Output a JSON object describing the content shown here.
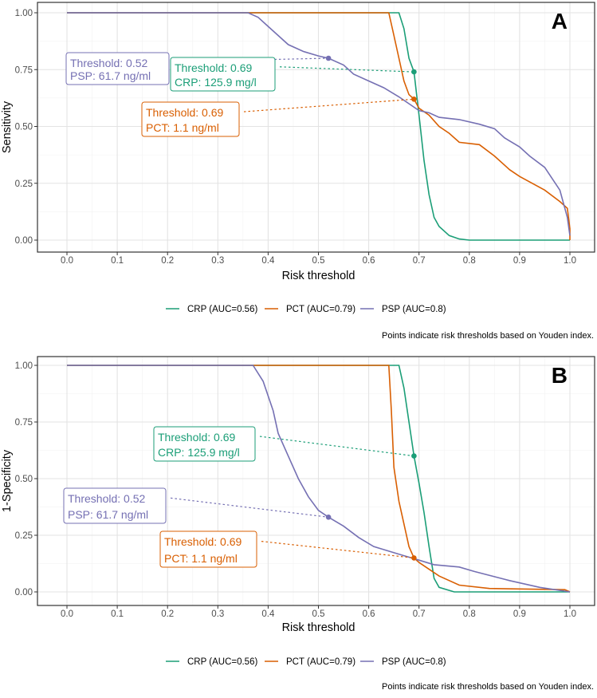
{
  "colors": {
    "CRP": "#1B9E77",
    "PCT": "#D95F02",
    "PSP": "#7570B3"
  },
  "chart_data": [
    {
      "type": "line",
      "panel": "A",
      "xlabel": "Risk threshold",
      "ylabel": "Sensitivity",
      "xlim": [
        0,
        1
      ],
      "ylim": [
        0,
        1
      ],
      "xticks": [
        "0.0",
        "0.1",
        "0.2",
        "0.3",
        "0.4",
        "0.5",
        "0.6",
        "0.7",
        "0.8",
        "0.9",
        "1.0"
      ],
      "yticks": [
        "0.00",
        "0.25",
        "0.50",
        "0.75",
        "1.00"
      ],
      "grid": true,
      "legend_position": "bottom",
      "legend": [
        "CRP (AUC=0.56)",
        "PCT (AUC=0.79)",
        "PSP (AUC=0.8)"
      ],
      "caption": "Points indicate risk thresholds based on Youden index.",
      "series": [
        {
          "name": "CRP",
          "x": [
            0,
            0.66,
            0.67,
            0.68,
            0.69,
            0.7,
            0.71,
            0.72,
            0.73,
            0.74,
            0.76,
            0.78,
            0.8,
            1.0
          ],
          "y": [
            1,
            1,
            0.93,
            0.8,
            0.74,
            0.55,
            0.35,
            0.2,
            0.1,
            0.06,
            0.02,
            0.005,
            0,
            0
          ]
        },
        {
          "name": "PCT",
          "x": [
            0,
            0.64,
            0.65,
            0.66,
            0.67,
            0.68,
            0.69,
            0.7,
            0.72,
            0.74,
            0.76,
            0.78,
            0.82,
            0.85,
            0.88,
            0.9,
            0.95,
            0.98,
            0.995,
            1.0,
            1.0
          ],
          "y": [
            1,
            1,
            0.9,
            0.8,
            0.7,
            0.64,
            0.62,
            0.58,
            0.55,
            0.5,
            0.47,
            0.43,
            0.42,
            0.37,
            0.31,
            0.28,
            0.22,
            0.17,
            0.14,
            0.05,
            0
          ]
        },
        {
          "name": "PSP",
          "x": [
            0,
            0.36,
            0.38,
            0.4,
            0.42,
            0.44,
            0.47,
            0.5,
            0.52,
            0.55,
            0.57,
            0.6,
            0.63,
            0.66,
            0.68,
            0.7,
            0.72,
            0.74,
            0.78,
            0.82,
            0.85,
            0.87,
            0.9,
            0.92,
            0.95,
            0.98,
            0.995,
            1.0
          ],
          "y": [
            1,
            1,
            0.98,
            0.94,
            0.9,
            0.86,
            0.83,
            0.81,
            0.8,
            0.77,
            0.73,
            0.7,
            0.67,
            0.63,
            0.6,
            0.57,
            0.56,
            0.54,
            0.53,
            0.51,
            0.49,
            0.45,
            0.41,
            0.37,
            0.32,
            0.22,
            0.1,
            0.02
          ]
        }
      ],
      "points": [
        {
          "name": "PSP",
          "x": 0.52,
          "y": 0.8,
          "label1": "Threshold: 0.52",
          "label2": "PSP: 61.7 ng/ml"
        },
        {
          "name": "CRP",
          "x": 0.69,
          "y": 0.74,
          "label1": "Threshold: 0.69",
          "label2": "CRP: 125.9 mg/l"
        },
        {
          "name": "PCT",
          "x": 0.69,
          "y": 0.62,
          "label1": "Threshold: 0.69",
          "label2": "PCT: 1.1 ng/ml"
        }
      ]
    },
    {
      "type": "line",
      "panel": "B",
      "xlabel": "Risk threshold",
      "ylabel": "1-Specificity",
      "xlim": [
        0,
        1
      ],
      "ylim": [
        0,
        1
      ],
      "xticks": [
        "0.0",
        "0.1",
        "0.2",
        "0.3",
        "0.4",
        "0.5",
        "0.6",
        "0.7",
        "0.8",
        "0.9",
        "1.0"
      ],
      "yticks": [
        "0.00",
        "0.25",
        "0.50",
        "0.75",
        "1.00"
      ],
      "grid": true,
      "legend_position": "bottom",
      "legend": [
        "CRP (AUC=0.56)",
        "PCT (AUC=0.79)",
        "PSP (AUC=0.8)"
      ],
      "caption": "Points indicate risk thresholds based on Youden index.",
      "series": [
        {
          "name": "CRP",
          "x": [
            0,
            0.66,
            0.67,
            0.68,
            0.69,
            0.7,
            0.71,
            0.72,
            0.73,
            0.74,
            0.77,
            1.0
          ],
          "y": [
            1,
            1,
            0.9,
            0.75,
            0.6,
            0.48,
            0.35,
            0.2,
            0.06,
            0.02,
            0,
            0
          ]
        },
        {
          "name": "PCT",
          "x": [
            0,
            0.64,
            0.645,
            0.65,
            0.66,
            0.67,
            0.68,
            0.69,
            0.7,
            0.72,
            0.74,
            0.78,
            0.84,
            0.99,
            1.0
          ],
          "y": [
            1,
            1,
            0.8,
            0.55,
            0.4,
            0.3,
            0.2,
            0.15,
            0.13,
            0.1,
            0.07,
            0.03,
            0.015,
            0.01,
            0
          ]
        },
        {
          "name": "PSP",
          "x": [
            0,
            0.37,
            0.39,
            0.41,
            0.42,
            0.44,
            0.46,
            0.48,
            0.5,
            0.52,
            0.55,
            0.58,
            0.61,
            0.64,
            0.67,
            0.7,
            0.73,
            0.78,
            0.81,
            0.88,
            0.94,
            1.0
          ],
          "y": [
            1,
            1,
            0.93,
            0.8,
            0.7,
            0.6,
            0.5,
            0.42,
            0.36,
            0.33,
            0.29,
            0.24,
            0.2,
            0.18,
            0.16,
            0.14,
            0.12,
            0.11,
            0.09,
            0.05,
            0.02,
            0
          ]
        }
      ],
      "points": [
        {
          "name": "CRP",
          "x": 0.69,
          "y": 0.6,
          "label1": "Threshold: 0.69",
          "label2": "CRP: 125.9 mg/l"
        },
        {
          "name": "PSP",
          "x": 0.52,
          "y": 0.33,
          "label1": "Threshold: 0.52",
          "label2": "PSP: 61.7 ng/ml"
        },
        {
          "name": "PCT",
          "x": 0.69,
          "y": 0.15,
          "label1": "Threshold: 0.69",
          "label2": "PCT: 1.1 ng/ml"
        }
      ]
    }
  ]
}
